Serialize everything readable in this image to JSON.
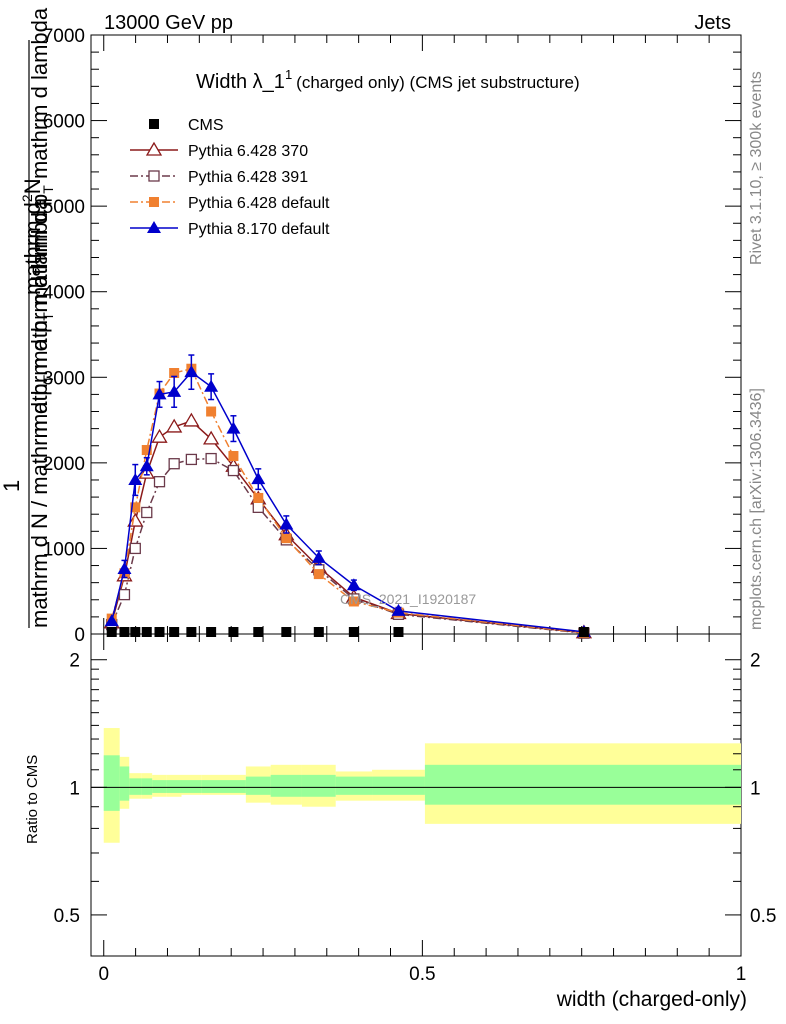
{
  "header": {
    "left": "13000 GeV pp",
    "right": "Jets"
  },
  "title": {
    "main": "Width λ_1",
    "sup": "1",
    "sub": "(charged only) (CMS jet substructure)"
  },
  "side_labels": {
    "rivet": "Rivet 3.1.10, ≥ 300k events",
    "mcplots": "mcplots.cern.ch [arXiv:1306.3436]"
  },
  "watermark": "CMS_2021_I1920187",
  "ylabel": {
    "numerator_1": "1",
    "numerator_2": "mathrm d",
    "numerator_2_sup": "2",
    "numerator_2_tail": "N",
    "denominator_line": "mathrm d N / mathrm d p",
    "denominator_sub": "T",
    "denominator_tail": " mathrm d lambda",
    "overlay_1": "mathrm d p",
    "overlay_1_sub": "T",
    "overlay_1_tail": " mathrm d lambda",
    "overlay_2": "mathrm d p",
    "overlay_2_sub": "T"
  },
  "chart_data": {
    "type": "line",
    "xlabel": "width (charged-only)",
    "xlim": [
      -0.02,
      1.0
    ],
    "ylim": [
      0,
      7000
    ],
    "y_ticks": [
      "0",
      "1000",
      "2000",
      "3000",
      "4000",
      "5000",
      "6000",
      "7000"
    ],
    "x_ticks": [
      "0",
      "0.5",
      "1"
    ],
    "legend_position": "top-left",
    "x": [
      0.0125,
      0.0325,
      0.0495,
      0.0675,
      0.0875,
      0.1105,
      0.1375,
      0.1685,
      0.2035,
      0.2425,
      0.2865,
      0.3375,
      0.3925,
      0.4625,
      0.7535
    ],
    "series": [
      {
        "name": "CMS",
        "color": "#000000",
        "marker": "square-filled",
        "values": [
          10,
          10,
          10,
          10,
          10,
          10,
          10,
          10,
          10,
          10,
          10,
          10,
          10,
          10,
          10
        ]
      },
      {
        "name": "Pythia 6.428 370",
        "color": "#8b1a1a",
        "marker": "triangle-open",
        "line": "solid",
        "values": [
          130,
          680,
          1320,
          1880,
          2300,
          2420,
          2490,
          2280,
          1960,
          1580,
          1160,
          780,
          430,
          240,
          15
        ]
      },
      {
        "name": "Pythia 6.428 391",
        "color": "#6b3a4a",
        "marker": "square-open",
        "line": "dashdot",
        "values": [
          110,
          460,
          1000,
          1420,
          1780,
          1990,
          2040,
          2050,
          1910,
          1480,
          1100,
          750,
          410,
          230,
          10
        ]
      },
      {
        "name": "Pythia 6.428 default",
        "color": "#f08030",
        "marker": "square-filled",
        "line": "dashdot",
        "values": [
          180,
          710,
          1480,
          2150,
          2810,
          3050,
          3100,
          2600,
          2080,
          1590,
          1120,
          700,
          380,
          250,
          15
        ]
      },
      {
        "name": "Pythia 8.170 default",
        "color": "#0000cc",
        "marker": "triangle-filled",
        "line": "solid",
        "values": [
          150,
          760,
          1800,
          1960,
          2800,
          2830,
          3060,
          2890,
          2400,
          1810,
          1280,
          890,
          570,
          270,
          25
        ]
      }
    ],
    "errors_p8": [
      20,
      100,
      180,
      100,
      150,
      180,
      200,
      150,
      150,
      120,
      100,
      80,
      60,
      40,
      10
    ],
    "ratio": {
      "ylabel": "Ratio to CMS",
      "ylim_log": [
        0.4,
        2.3
      ],
      "y_ticks": [
        "0.5",
        "1",
        "2"
      ],
      "x_ticks": [
        "0",
        "0.5",
        "1"
      ],
      "bin_edges": [
        0.0,
        0.025,
        0.04,
        0.059,
        0.076,
        0.099,
        0.122,
        0.153,
        0.184,
        0.223,
        0.262,
        0.311,
        0.364,
        0.421,
        0.504,
        1.0
      ],
      "band_inner_lo": [
        0.88,
        0.93,
        0.96,
        0.96,
        0.97,
        0.97,
        0.97,
        0.97,
        0.97,
        0.96,
        0.95,
        0.95,
        0.96,
        0.96,
        0.91
      ],
      "band_inner_hi": [
        1.19,
        1.12,
        1.05,
        1.05,
        1.04,
        1.04,
        1.04,
        1.04,
        1.04,
        1.06,
        1.07,
        1.07,
        1.06,
        1.06,
        1.13
      ],
      "band_outer_lo": [
        0.74,
        0.89,
        0.94,
        0.94,
        0.95,
        0.95,
        0.96,
        0.96,
        0.96,
        0.92,
        0.91,
        0.9,
        0.93,
        0.93,
        0.82
      ],
      "band_outer_hi": [
        1.38,
        1.18,
        1.08,
        1.08,
        1.07,
        1.07,
        1.07,
        1.07,
        1.07,
        1.12,
        1.13,
        1.13,
        1.09,
        1.1,
        1.27
      ],
      "colors": {
        "inner": "#99ff99",
        "outer": "#ffff99"
      }
    }
  }
}
